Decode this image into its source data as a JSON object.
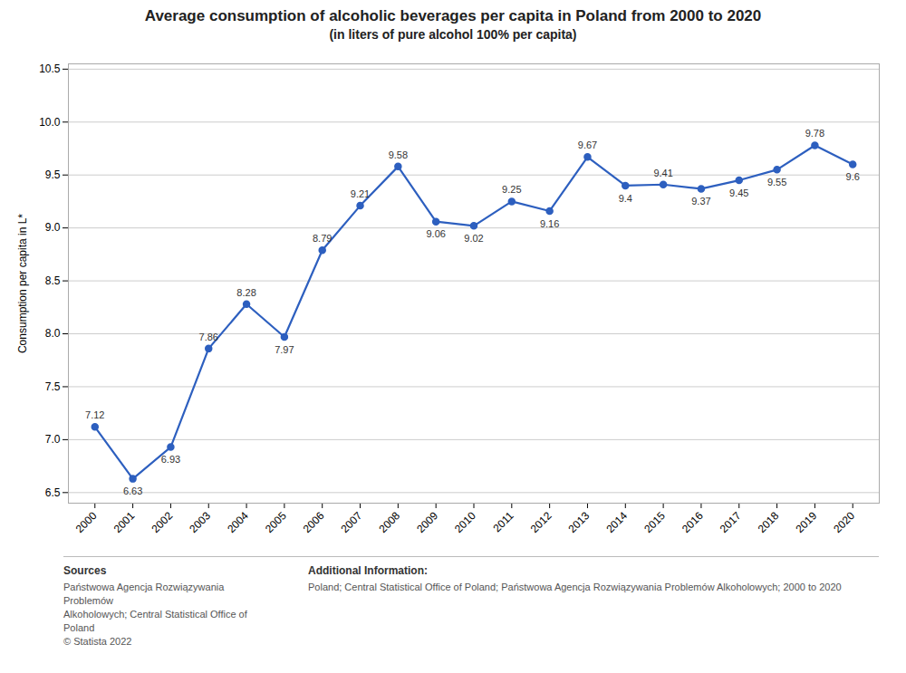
{
  "chart_data": {
    "type": "line",
    "title": "Average consumption of alcoholic beverages per capita in Poland from 2000 to 2020",
    "subtitle": "(in liters of pure alcohol 100% per capita)",
    "x": [
      2000,
      2001,
      2002,
      2003,
      2004,
      2005,
      2006,
      2007,
      2008,
      2009,
      2010,
      2011,
      2012,
      2013,
      2014,
      2015,
      2016,
      2017,
      2018,
      2019,
      2020
    ],
    "values": [
      7.12,
      6.63,
      6.93,
      7.86,
      8.28,
      7.97,
      8.79,
      9.21,
      9.58,
      9.06,
      9.02,
      9.25,
      9.16,
      9.67,
      9.4,
      9.41,
      9.37,
      9.45,
      9.55,
      9.78,
      9.6
    ],
    "ylabel": "Consumption per capita in L*",
    "xlim": [
      1999.3,
      2020.7
    ],
    "xticks": [
      2000,
      2001,
      2002,
      2003,
      2004,
      2005,
      2006,
      2007,
      2008,
      2009,
      2010,
      2011,
      2012,
      2013,
      2014,
      2015,
      2016,
      2017,
      2018,
      2019,
      2020
    ],
    "ylim": [
      6.4,
      10.55
    ],
    "yticks": [
      6.5,
      {
        "value": 7.0,
        "label": "7.0"
      },
      7.5,
      {
        "value": 8.0,
        "label": "8.0"
      },
      8.5,
      {
        "value": 9.0,
        "label": "9.0"
      },
      9.5,
      {
        "value": 10.0,
        "label": "10.0"
      },
      10.5
    ],
    "color": "#2d5fbf",
    "marker": "circle",
    "grid": true,
    "data_labels": true,
    "footer": [
      {
        "heading": "Sources",
        "lines": [
          "Państwowa Agencja Rozwiązywania Problemów",
          "Alkoholowych; Central Statistical Office of Poland",
          "© Statista 2022"
        ]
      },
      {
        "heading": "Additional Information:",
        "lines": [
          "Poland; Central Statistical Office of Poland; Państwowa Agencja Rozwiązywania Problemów Alkoholowych; 2000 to 2020"
        ]
      }
    ]
  }
}
